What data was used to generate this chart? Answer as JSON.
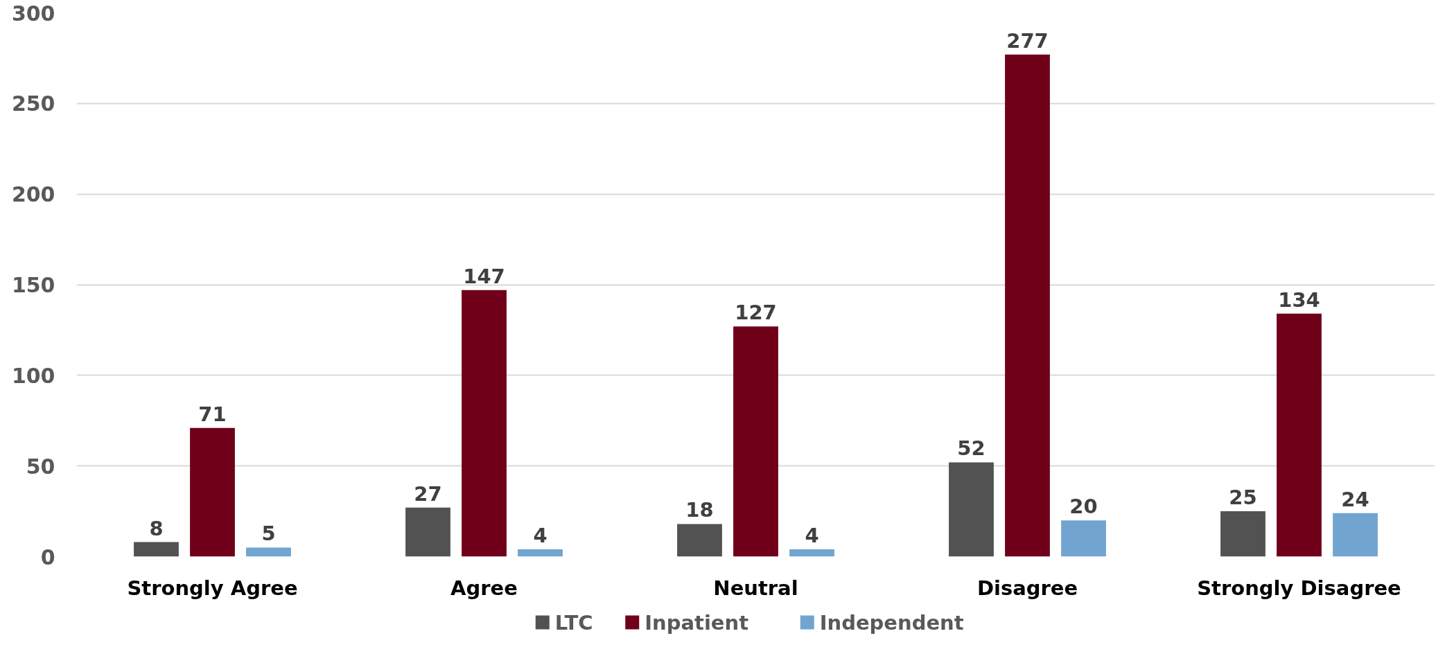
{
  "chart_data": {
    "type": "bar",
    "categories": [
      "Strongly Agree",
      "Agree",
      "Neutral",
      "Disagree",
      "Strongly Disagree"
    ],
    "series": [
      {
        "name": "LTC",
        "color": "#525252",
        "values": [
          8,
          27,
          18,
          52,
          25
        ]
      },
      {
        "name": "Inpatient",
        "color": "#70001a",
        "values": [
          71,
          147,
          127,
          277,
          134
        ]
      },
      {
        "name": "Independent",
        "color": "#71a5cf",
        "values": [
          5,
          4,
          4,
          20,
          24
        ]
      }
    ],
    "ylim": [
      0,
      300
    ],
    "yticks": [
      0,
      50,
      100,
      150,
      200,
      250,
      300
    ],
    "grid": "y",
    "legend": "bottom",
    "data_labels": true
  }
}
